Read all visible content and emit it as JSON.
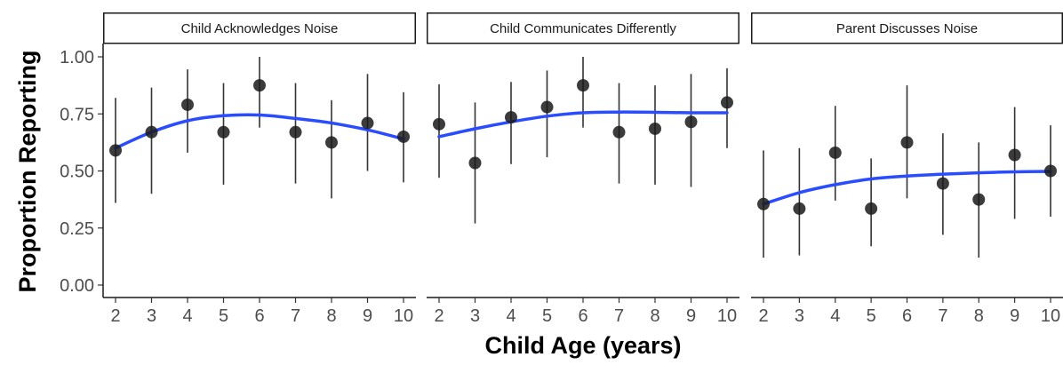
{
  "chart_data": {
    "type": "scatter",
    "xlabel": "Child Age (years)",
    "ylabel": "Proportion Reporting",
    "ylim": [
      0,
      1
    ],
    "xlim": [
      2,
      10
    ],
    "x_ticks": [
      "2",
      "3",
      "4",
      "5",
      "6",
      "7",
      "8",
      "9",
      "10"
    ],
    "y_ticks": [
      "0.00",
      "0.25",
      "0.50",
      "0.75",
      "1.00"
    ],
    "grid": false,
    "colors": {
      "points": "#1a1a1a",
      "errorbars": "#333333",
      "fit": "#2a4cff",
      "strip_fill": "#ffffff",
      "strip_border": "#1a1a1a"
    },
    "panels": [
      {
        "title": "Child Acknowledges Noise",
        "x": [
          2,
          3,
          4,
          5,
          6,
          7,
          8,
          9,
          10
        ],
        "y": [
          0.59,
          0.67,
          0.79,
          0.67,
          0.875,
          0.67,
          0.625,
          0.71,
          0.65
        ],
        "lower": [
          0.36,
          0.4,
          0.58,
          0.44,
          0.69,
          0.445,
          0.38,
          0.5,
          0.45
        ],
        "upper": [
          0.82,
          0.865,
          0.945,
          0.885,
          1.0,
          0.885,
          0.81,
          0.925,
          0.845
        ],
        "fit": [
          0.6,
          0.67,
          0.72,
          0.742,
          0.745,
          0.73,
          0.71,
          0.68,
          0.64
        ]
      },
      {
        "title": "Child Communicates Differently",
        "x": [
          2,
          3,
          4,
          5,
          6,
          7,
          8,
          9,
          10
        ],
        "y": [
          0.705,
          0.535,
          0.735,
          0.78,
          0.875,
          0.67,
          0.685,
          0.715,
          0.8
        ],
        "lower": [
          0.47,
          0.27,
          0.53,
          0.56,
          0.69,
          0.445,
          0.44,
          0.43,
          0.6
        ],
        "upper": [
          0.88,
          0.8,
          0.89,
          0.94,
          1.0,
          0.885,
          0.875,
          0.925,
          0.95
        ],
        "fit": [
          0.65,
          0.685,
          0.715,
          0.74,
          0.755,
          0.758,
          0.757,
          0.755,
          0.755
        ]
      },
      {
        "title": "Parent Discusses Noise",
        "x": [
          2,
          3,
          4,
          5,
          6,
          7,
          8,
          9,
          10
        ],
        "y": [
          0.355,
          0.335,
          0.58,
          0.335,
          0.625,
          0.445,
          0.375,
          0.57,
          0.5
        ],
        "lower": [
          0.12,
          0.13,
          0.37,
          0.17,
          0.38,
          0.22,
          0.12,
          0.29,
          0.3
        ],
        "upper": [
          0.59,
          0.6,
          0.785,
          0.555,
          0.875,
          0.665,
          0.625,
          0.78,
          0.7
        ],
        "fit": [
          0.355,
          0.405,
          0.44,
          0.465,
          0.478,
          0.486,
          0.492,
          0.496,
          0.498
        ]
      }
    ]
  }
}
